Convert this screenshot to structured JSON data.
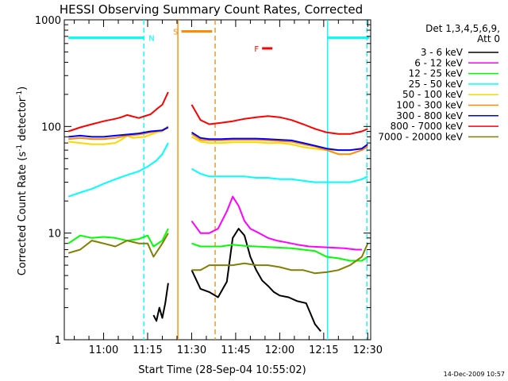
{
  "chart_data": {
    "type": "line",
    "title": "HESSI Observing Summary Count Rates, Corrected",
    "xlabel": "Start Time (28-Sep-04 10:55:02)",
    "ylabel_main": "Corrected Count Rate (s",
    "ylabel_sup1": "-1",
    "ylabel_mid": " detector",
    "ylabel_sup2": "-1",
    "ylabel_end": ")",
    "y_scale": "log",
    "ylim": [
      1,
      1000
    ],
    "xlim_minutes": [
      10.0,
      30.5
    ],
    "x_ticks": [
      {
        "label": "11:00",
        "t": 0
      },
      {
        "label": "11:15",
        "t": 15
      },
      {
        "label": "11:30",
        "t": 30
      },
      {
        "label": "11:45",
        "t": 45
      },
      {
        "label": "12:00",
        "t": 60
      },
      {
        "label": "12:15",
        "t": 75
      },
      {
        "label": "12:30",
        "t": 90
      }
    ],
    "y_ticks": [
      {
        "label": "1",
        "v": 1
      },
      {
        "label": "10",
        "v": 10
      },
      {
        "label": "100",
        "v": 100
      },
      {
        "label": "1000",
        "v": 1000
      }
    ],
    "legend_title1": "Det 1,3,4,5,6,9,",
    "legend_title2": "Att 0",
    "timestamp": "14-Dec-2009 10:57",
    "series": [
      {
        "name": "3 - 6 keV",
        "color": "#000000",
        "points": [
          [
            17,
            1.7
          ],
          [
            18,
            1.5
          ],
          [
            19,
            2.0
          ],
          [
            20,
            1.6
          ],
          [
            21,
            2.2
          ],
          [
            22,
            3.4
          ],
          [
            30,
            4.5
          ],
          [
            33,
            3.0
          ],
          [
            36,
            2.8
          ],
          [
            39,
            2.5
          ],
          [
            42,
            3.5
          ],
          [
            44,
            9
          ],
          [
            46,
            11
          ],
          [
            48,
            9.5
          ],
          [
            50,
            6
          ],
          [
            52,
            4.5
          ],
          [
            54,
            3.6
          ],
          [
            56,
            3.2
          ],
          [
            58,
            2.8
          ],
          [
            60,
            2.6
          ],
          [
            63,
            2.5
          ],
          [
            66,
            2.3
          ],
          [
            69,
            2.2
          ],
          [
            72,
            1.4
          ],
          [
            74,
            1.2
          ]
        ]
      },
      {
        "name": "6 - 12 keV",
        "color": "#ff00ff",
        "points": [
          [
            30,
            13
          ],
          [
            33,
            10
          ],
          [
            36,
            10
          ],
          [
            39,
            11
          ],
          [
            42,
            16
          ],
          [
            44,
            22
          ],
          [
            46,
            18
          ],
          [
            48,
            13
          ],
          [
            50,
            11
          ],
          [
            53,
            10
          ],
          [
            56,
            9
          ],
          [
            59,
            8.5
          ],
          [
            62,
            8.2
          ],
          [
            66,
            7.8
          ],
          [
            70,
            7.5
          ],
          [
            74,
            7.4
          ],
          [
            78,
            7.3
          ],
          [
            82,
            7.2
          ],
          [
            86,
            7.0
          ],
          [
            88,
            7.0
          ]
        ]
      },
      {
        "name": "12 - 25 keV",
        "color": "#00ff00",
        "points": [
          [
            -12,
            8.0
          ],
          [
            -8,
            9.5
          ],
          [
            -4,
            9.0
          ],
          [
            0,
            9.2
          ],
          [
            4,
            9.0
          ],
          [
            8,
            8.5
          ],
          [
            12,
            8.8
          ],
          [
            15,
            9.5
          ],
          [
            17,
            7.5
          ],
          [
            20,
            8.5
          ],
          [
            22,
            11
          ],
          [
            30,
            8.0
          ],
          [
            33,
            7.5
          ],
          [
            36,
            7.5
          ],
          [
            40,
            7.5
          ],
          [
            44,
            7.8
          ],
          [
            48,
            7.6
          ],
          [
            52,
            7.5
          ],
          [
            56,
            7.4
          ],
          [
            60,
            7.3
          ],
          [
            64,
            7.2
          ],
          [
            68,
            7.0
          ],
          [
            72,
            6.8
          ],
          [
            76,
            6.0
          ],
          [
            80,
            5.8
          ],
          [
            84,
            5.5
          ],
          [
            88,
            5.5
          ],
          [
            90,
            6.0
          ]
        ]
      },
      {
        "name": "25 - 50 keV",
        "color": "#00ffff",
        "points": [
          [
            -12,
            22
          ],
          [
            -8,
            24
          ],
          [
            -4,
            26
          ],
          [
            0,
            29
          ],
          [
            4,
            32
          ],
          [
            8,
            35
          ],
          [
            12,
            38
          ],
          [
            15,
            42
          ],
          [
            18,
            48
          ],
          [
            20,
            55
          ],
          [
            22,
            70
          ],
          [
            30,
            40
          ],
          [
            33,
            36
          ],
          [
            36,
            34
          ],
          [
            40,
            34
          ],
          [
            44,
            34
          ],
          [
            48,
            34
          ],
          [
            52,
            33
          ],
          [
            56,
            33
          ],
          [
            60,
            32
          ],
          [
            64,
            32
          ],
          [
            68,
            31
          ],
          [
            72,
            30
          ],
          [
            76,
            30
          ],
          [
            80,
            30
          ],
          [
            84,
            30
          ],
          [
            88,
            32
          ],
          [
            90,
            34
          ]
        ]
      },
      {
        "name": "50 - 100 keV",
        "color": "#ffd700",
        "points": [
          [
            -12,
            72
          ],
          [
            -8,
            70
          ],
          [
            -4,
            68
          ],
          [
            0,
            68
          ],
          [
            4,
            70
          ],
          [
            6,
            75
          ],
          [
            8,
            82
          ],
          [
            10,
            78
          ],
          [
            14,
            80
          ],
          [
            18,
            88
          ],
          [
            20,
            90
          ],
          [
            22,
            100
          ],
          [
            30,
            80
          ],
          [
            33,
            72
          ],
          [
            36,
            70
          ],
          [
            40,
            70
          ],
          [
            44,
            71
          ],
          [
            48,
            71
          ],
          [
            52,
            71
          ],
          [
            56,
            70
          ],
          [
            60,
            70
          ],
          [
            64,
            68
          ],
          [
            68,
            64
          ],
          [
            72,
            62
          ],
          [
            76,
            60
          ],
          [
            80,
            60
          ],
          [
            84,
            60
          ],
          [
            88,
            62
          ],
          [
            90,
            66
          ]
        ]
      },
      {
        "name": "100 - 300 keV",
        "color": "#ff8c00",
        "points": [
          [
            -12,
            76
          ],
          [
            -8,
            78
          ],
          [
            -4,
            76
          ],
          [
            0,
            76
          ],
          [
            4,
            78
          ],
          [
            8,
            82
          ],
          [
            12,
            84
          ],
          [
            16,
            88
          ],
          [
            20,
            92
          ],
          [
            22,
            100
          ],
          [
            30,
            85
          ],
          [
            33,
            75
          ],
          [
            36,
            74
          ],
          [
            40,
            74
          ],
          [
            44,
            75
          ],
          [
            48,
            75
          ],
          [
            52,
            75
          ],
          [
            56,
            74
          ],
          [
            60,
            73
          ],
          [
            64,
            72
          ],
          [
            68,
            68
          ],
          [
            72,
            65
          ],
          [
            76,
            60
          ],
          [
            80,
            55
          ],
          [
            84,
            55
          ],
          [
            88,
            60
          ],
          [
            90,
            65
          ]
        ]
      },
      {
        "name": "300 - 800 keV",
        "color": "#0000ff",
        "points": [
          [
            -12,
            80
          ],
          [
            -8,
            82
          ],
          [
            -4,
            80
          ],
          [
            0,
            80
          ],
          [
            4,
            82
          ],
          [
            8,
            84
          ],
          [
            12,
            86
          ],
          [
            16,
            90
          ],
          [
            20,
            92
          ],
          [
            22,
            98
          ],
          [
            30,
            88
          ],
          [
            33,
            78
          ],
          [
            36,
            76
          ],
          [
            40,
            76
          ],
          [
            44,
            77
          ],
          [
            48,
            77
          ],
          [
            52,
            77
          ],
          [
            56,
            76
          ],
          [
            60,
            75
          ],
          [
            64,
            74
          ],
          [
            68,
            70
          ],
          [
            72,
            66
          ],
          [
            76,
            62
          ],
          [
            80,
            60
          ],
          [
            84,
            60
          ],
          [
            88,
            62
          ],
          [
            90,
            68
          ]
        ]
      },
      {
        "name": "800 - 7000 keV",
        "color": "#ff0000",
        "points": [
          [
            -12,
            90
          ],
          [
            -8,
            98
          ],
          [
            -4,
            105
          ],
          [
            0,
            112
          ],
          [
            4,
            118
          ],
          [
            6,
            122
          ],
          [
            8,
            128
          ],
          [
            12,
            120
          ],
          [
            16,
            130
          ],
          [
            18,
            145
          ],
          [
            20,
            160
          ],
          [
            22,
            210
          ],
          [
            30,
            160
          ],
          [
            33,
            115
          ],
          [
            36,
            105
          ],
          [
            40,
            108
          ],
          [
            44,
            112
          ],
          [
            48,
            118
          ],
          [
            52,
            122
          ],
          [
            56,
            125
          ],
          [
            60,
            122
          ],
          [
            64,
            115
          ],
          [
            68,
            105
          ],
          [
            72,
            95
          ],
          [
            76,
            88
          ],
          [
            80,
            85
          ],
          [
            84,
            85
          ],
          [
            88,
            90
          ],
          [
            90,
            95
          ]
        ]
      },
      {
        "name": "7000 - 20000 keV",
        "color": "#808000",
        "points": [
          [
            -12,
            6.5
          ],
          [
            -8,
            7.0
          ],
          [
            -4,
            8.5
          ],
          [
            0,
            8.0
          ],
          [
            4,
            7.5
          ],
          [
            8,
            8.5
          ],
          [
            12,
            8.0
          ],
          [
            15,
            8.0
          ],
          [
            17,
            6.0
          ],
          [
            20,
            8.0
          ],
          [
            22,
            10
          ],
          [
            30,
            4.5
          ],
          [
            33,
            4.5
          ],
          [
            36,
            5.0
          ],
          [
            40,
            5.0
          ],
          [
            44,
            5.0
          ],
          [
            48,
            5.2
          ],
          [
            52,
            5.0
          ],
          [
            56,
            5.0
          ],
          [
            60,
            4.8
          ],
          [
            64,
            4.5
          ],
          [
            68,
            4.5
          ],
          [
            72,
            4.2
          ],
          [
            76,
            4.3
          ],
          [
            80,
            4.5
          ],
          [
            84,
            5.0
          ],
          [
            88,
            6.0
          ],
          [
            90,
            8.0
          ]
        ]
      }
    ],
    "flag_lines": [
      {
        "t": 13.7,
        "color": "#00ffff",
        "style": "dashed"
      },
      {
        "t": 25.3,
        "color": "#ff8c00",
        "style": "solid"
      },
      {
        "t": 38.0,
        "color": "#ff8c00",
        "style": "dashed"
      },
      {
        "t": 76.3,
        "color": "#00ffff",
        "style": "solid"
      },
      {
        "t": 89.7,
        "color": "#00ffff",
        "style": "dashed"
      }
    ],
    "flag_bars": [
      {
        "label": "N",
        "color": "#00ffff",
        "t0": -12,
        "t1": 13.7,
        "v": 680,
        "show_label": false
      },
      {
        "label": "N",
        "color": "#00ffff",
        "t0": 76.3,
        "t1": 90.5,
        "v": 680,
        "show_label": false
      },
      {
        "label": "N",
        "color": "#00ffff",
        "t0": 13.7,
        "t1": 13.7,
        "v": 680,
        "show_label": true
      },
      {
        "label": "S",
        "color": "#ff8c00",
        "t0": 26.5,
        "t1": 37.0,
        "v": 780,
        "show_label": true
      },
      {
        "label": "F",
        "color": "#ff0000",
        "t0": 54.0,
        "t1": 57.5,
        "v": 540,
        "show_label": true
      }
    ],
    "legend_placement": "right",
    "grid": false
  }
}
